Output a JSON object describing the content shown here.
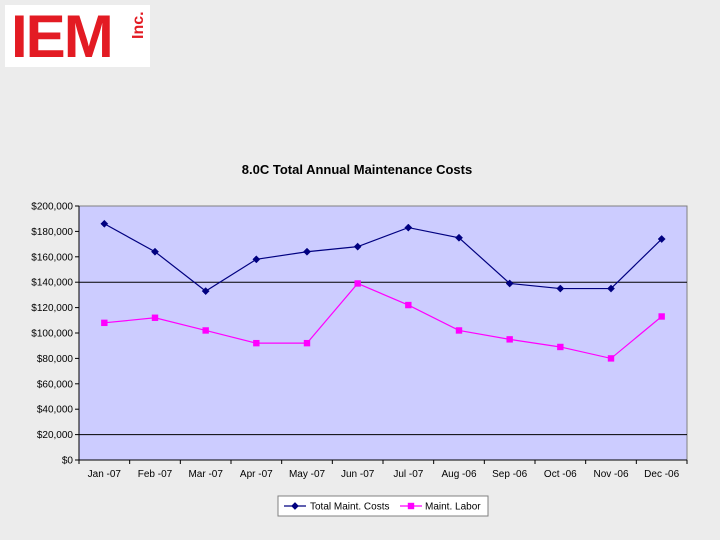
{
  "logo": {
    "main": "IEM",
    "suffix": "Inc."
  },
  "colors": {
    "plot_bg": "#ccccff",
    "series_1": "#000080",
    "series_2": "#ff00ff"
  },
  "chart_data": {
    "type": "line",
    "title": "8.0C Total Annual Maintenance Costs",
    "xlabel": "",
    "ylabel": "",
    "categories": [
      "Jan -07",
      "Feb -07",
      "Mar -07",
      "Apr -07",
      "May -07",
      "Jun -07",
      "Jul -07",
      "Aug -06",
      "Sep -06",
      "Oct -06",
      "Nov -06",
      "Dec -06"
    ],
    "ylim": [
      0,
      200000
    ],
    "yticks": [
      {
        "value": 0,
        "label": "$0"
      },
      {
        "value": 20000,
        "label": "$20,000"
      },
      {
        "value": 40000,
        "label": "$40,000"
      },
      {
        "value": 60000,
        "label": "$60,000"
      },
      {
        "value": 80000,
        "label": "$80,000"
      },
      {
        "value": 100000,
        "label": "$100,000"
      },
      {
        "value": 120000,
        "label": "$120,000"
      },
      {
        "value": 140000,
        "label": "$140,000"
      },
      {
        "value": 160000,
        "label": "$160,000"
      },
      {
        "value": 180000,
        "label": "$180,000"
      },
      {
        "value": 200000,
        "label": "$200,000"
      }
    ],
    "gridlines": [
      20000,
      140000
    ],
    "legend_position": "bottom",
    "series": [
      {
        "name": "Total Maint. Costs",
        "color": "#000080",
        "marker": "diamond",
        "values": [
          186000,
          164000,
          133000,
          158000,
          164000,
          168000,
          183000,
          175000,
          139000,
          135000,
          135000,
          174000
        ]
      },
      {
        "name": "Maint. Labor",
        "color": "#ff00ff",
        "marker": "square",
        "values": [
          108000,
          112000,
          102000,
          92000,
          92000,
          139000,
          122000,
          102000,
          95000,
          89000,
          80000,
          113000
        ]
      }
    ]
  }
}
